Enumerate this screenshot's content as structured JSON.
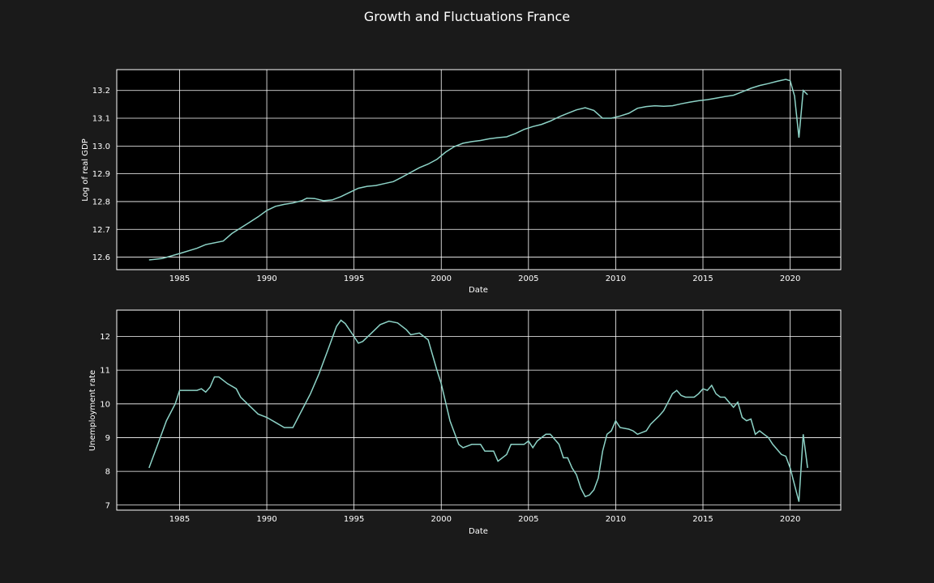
{
  "figure": {
    "title": "Growth and Fluctuations France",
    "background": "#1a1a1a",
    "axes_background": "#000000",
    "line_color": "#8dd3c7",
    "grid_color": "#ffffff"
  },
  "chart_data": [
    {
      "type": "line",
      "xlabel": "Date",
      "ylabel": "Log of real GDP",
      "xlim": [
        1981.4,
        2022.9
      ],
      "ylim": [
        12.555,
        13.275
      ],
      "xticks": [
        1985,
        1990,
        1995,
        2000,
        2005,
        2010,
        2015,
        2020
      ],
      "yticks": [
        12.6,
        12.7,
        12.8,
        12.9,
        13.0,
        13.1,
        13.2
      ],
      "ytick_labels": [
        "12.6",
        "12.7",
        "12.8",
        "12.9",
        "13.0",
        "13.1",
        "13.2"
      ],
      "grid": true,
      "series": [
        {
          "points": [
            [
              1983.25,
              12.59
            ],
            [
              1984.0,
              12.595
            ],
            [
              1985.0,
              12.613
            ],
            [
              1986.0,
              12.632
            ],
            [
              1986.5,
              12.645
            ],
            [
              1987.5,
              12.658
            ],
            [
              1988.0,
              12.685
            ],
            [
              1988.5,
              12.705
            ],
            [
              1989.0,
              12.725
            ],
            [
              1989.5,
              12.745
            ],
            [
              1990.0,
              12.768
            ],
            [
              1990.5,
              12.783
            ],
            [
              1991.0,
              12.79
            ],
            [
              1991.5,
              12.795
            ],
            [
              1992.0,
              12.803
            ],
            [
              1992.3,
              12.812
            ],
            [
              1992.75,
              12.811
            ],
            [
              1993.25,
              12.803
            ],
            [
              1993.75,
              12.806
            ],
            [
              1994.25,
              12.818
            ],
            [
              1994.75,
              12.833
            ],
            [
              1995.25,
              12.848
            ],
            [
              1995.75,
              12.855
            ],
            [
              1996.25,
              12.858
            ],
            [
              1996.75,
              12.865
            ],
            [
              1997.25,
              12.872
            ],
            [
              1997.75,
              12.888
            ],
            [
              1998.25,
              12.905
            ],
            [
              1998.75,
              12.922
            ],
            [
              1999.25,
              12.935
            ],
            [
              1999.75,
              12.952
            ],
            [
              2000.25,
              12.978
            ],
            [
              2000.75,
              12.998
            ],
            [
              2001.25,
              13.01
            ],
            [
              2001.75,
              13.016
            ],
            [
              2002.25,
              13.02
            ],
            [
              2002.75,
              13.026
            ],
            [
              2003.25,
              13.03
            ],
            [
              2003.75,
              13.033
            ],
            [
              2004.25,
              13.045
            ],
            [
              2004.75,
              13.06
            ],
            [
              2005.25,
              13.07
            ],
            [
              2005.75,
              13.078
            ],
            [
              2006.25,
              13.09
            ],
            [
              2006.75,
              13.105
            ],
            [
              2007.25,
              13.118
            ],
            [
              2007.75,
              13.13
            ],
            [
              2008.25,
              13.138
            ],
            [
              2008.75,
              13.128
            ],
            [
              2009.25,
              13.1
            ],
            [
              2009.75,
              13.1
            ],
            [
              2010.25,
              13.108
            ],
            [
              2010.75,
              13.118
            ],
            [
              2011.25,
              13.136
            ],
            [
              2011.75,
              13.142
            ],
            [
              2012.25,
              13.145
            ],
            [
              2012.75,
              13.143
            ],
            [
              2013.25,
              13.145
            ],
            [
              2013.75,
              13.152
            ],
            [
              2014.25,
              13.158
            ],
            [
              2014.75,
              13.163
            ],
            [
              2015.25,
              13.167
            ],
            [
              2015.75,
              13.172
            ],
            [
              2016.25,
              13.178
            ],
            [
              2016.75,
              13.183
            ],
            [
              2017.25,
              13.195
            ],
            [
              2017.75,
              13.208
            ],
            [
              2018.25,
              13.218
            ],
            [
              2018.75,
              13.225
            ],
            [
              2019.25,
              13.233
            ],
            [
              2019.75,
              13.24
            ],
            [
              2020.0,
              13.235
            ],
            [
              2020.25,
              13.18
            ],
            [
              2020.5,
              13.03
            ],
            [
              2020.75,
              13.2
            ],
            [
              2021.0,
              13.185
            ]
          ]
        }
      ]
    },
    {
      "type": "line",
      "xlabel": "Date",
      "ylabel": "Unemployment rate",
      "xlim": [
        1981.4,
        2022.9
      ],
      "ylim": [
        6.85,
        12.78
      ],
      "xticks": [
        1985,
        1990,
        1995,
        2000,
        2005,
        2010,
        2015,
        2020
      ],
      "yticks": [
        7,
        8,
        9,
        10,
        11,
        12
      ],
      "ytick_labels": [
        "7",
        "8",
        "9",
        "10",
        "11",
        "12"
      ],
      "grid": true,
      "series": [
        {
          "points": [
            [
              1983.25,
              8.1
            ],
            [
              1983.75,
              8.8
            ],
            [
              1984.25,
              9.5
            ],
            [
              1984.75,
              10.0
            ],
            [
              1985.0,
              10.4
            ],
            [
              1985.5,
              10.4
            ],
            [
              1986.0,
              10.4
            ],
            [
              1986.25,
              10.45
            ],
            [
              1986.5,
              10.35
            ],
            [
              1986.75,
              10.5
            ],
            [
              1987.0,
              10.8
            ],
            [
              1987.25,
              10.8
            ],
            [
              1987.75,
              10.6
            ],
            [
              1988.25,
              10.45
            ],
            [
              1988.5,
              10.2
            ],
            [
              1989.0,
              9.95
            ],
            [
              1989.5,
              9.7
            ],
            [
              1990.0,
              9.6
            ],
            [
              1990.5,
              9.45
            ],
            [
              1991.0,
              9.3
            ],
            [
              1991.5,
              9.3
            ],
            [
              1992.0,
              9.8
            ],
            [
              1992.5,
              10.3
            ],
            [
              1993.0,
              10.9
            ],
            [
              1993.5,
              11.6
            ],
            [
              1994.0,
              12.3
            ],
            [
              1994.25,
              12.48
            ],
            [
              1994.5,
              12.38
            ],
            [
              1995.0,
              12.0
            ],
            [
              1995.25,
              11.8
            ],
            [
              1995.5,
              11.85
            ],
            [
              1996.0,
              12.1
            ],
            [
              1996.5,
              12.35
            ],
            [
              1997.0,
              12.45
            ],
            [
              1997.5,
              12.4
            ],
            [
              1998.0,
              12.2
            ],
            [
              1998.25,
              12.05
            ],
            [
              1998.75,
              12.1
            ],
            [
              1999.0,
              12.0
            ],
            [
              1999.25,
              11.9
            ],
            [
              1999.75,
              11.0
            ],
            [
              2000.0,
              10.6
            ],
            [
              2000.5,
              9.5
            ],
            [
              2001.0,
              8.8
            ],
            [
              2001.25,
              8.7
            ],
            [
              2001.75,
              8.8
            ],
            [
              2002.25,
              8.8
            ],
            [
              2002.5,
              8.6
            ],
            [
              2003.0,
              8.6
            ],
            [
              2003.25,
              8.3
            ],
            [
              2003.75,
              8.5
            ],
            [
              2004.0,
              8.8
            ],
            [
              2004.5,
              8.8
            ],
            [
              2004.75,
              8.8
            ],
            [
              2005.0,
              8.9
            ],
            [
              2005.25,
              8.7
            ],
            [
              2005.5,
              8.9
            ],
            [
              2005.75,
              9.0
            ],
            [
              2006.0,
              9.1
            ],
            [
              2006.25,
              9.1
            ],
            [
              2006.75,
              8.8
            ],
            [
              2007.0,
              8.4
            ],
            [
              2007.25,
              8.4
            ],
            [
              2007.5,
              8.1
            ],
            [
              2007.75,
              7.9
            ],
            [
              2008.0,
              7.5
            ],
            [
              2008.25,
              7.25
            ],
            [
              2008.5,
              7.3
            ],
            [
              2008.75,
              7.45
            ],
            [
              2009.0,
              7.8
            ],
            [
              2009.25,
              8.6
            ],
            [
              2009.5,
              9.1
            ],
            [
              2009.75,
              9.2
            ],
            [
              2010.0,
              9.5
            ],
            [
              2010.25,
              9.3
            ],
            [
              2010.75,
              9.25
            ],
            [
              2011.0,
              9.2
            ],
            [
              2011.25,
              9.1
            ],
            [
              2011.5,
              9.15
            ],
            [
              2011.75,
              9.2
            ],
            [
              2012.0,
              9.4
            ],
            [
              2012.5,
              9.65
            ],
            [
              2012.75,
              9.8
            ],
            [
              2013.0,
              10.05
            ],
            [
              2013.25,
              10.3
            ],
            [
              2013.5,
              10.4
            ],
            [
              2013.75,
              10.25
            ],
            [
              2014.0,
              10.2
            ],
            [
              2014.5,
              10.2
            ],
            [
              2014.75,
              10.3
            ],
            [
              2015.0,
              10.45
            ],
            [
              2015.25,
              10.4
            ],
            [
              2015.5,
              10.55
            ],
            [
              2015.75,
              10.3
            ],
            [
              2016.0,
              10.2
            ],
            [
              2016.25,
              10.2
            ],
            [
              2016.5,
              10.05
            ],
            [
              2016.75,
              9.9
            ],
            [
              2017.0,
              10.05
            ],
            [
              2017.25,
              9.6
            ],
            [
              2017.5,
              9.5
            ],
            [
              2017.75,
              9.55
            ],
            [
              2018.0,
              9.1
            ],
            [
              2018.25,
              9.2
            ],
            [
              2018.5,
              9.1
            ],
            [
              2018.75,
              9.0
            ],
            [
              2019.0,
              8.8
            ],
            [
              2019.5,
              8.5
            ],
            [
              2019.75,
              8.45
            ],
            [
              2020.0,
              8.1
            ],
            [
              2020.25,
              7.6
            ],
            [
              2020.5,
              7.1
            ],
            [
              2020.75,
              9.1
            ],
            [
              2021.0,
              8.1
            ]
          ]
        }
      ]
    }
  ]
}
